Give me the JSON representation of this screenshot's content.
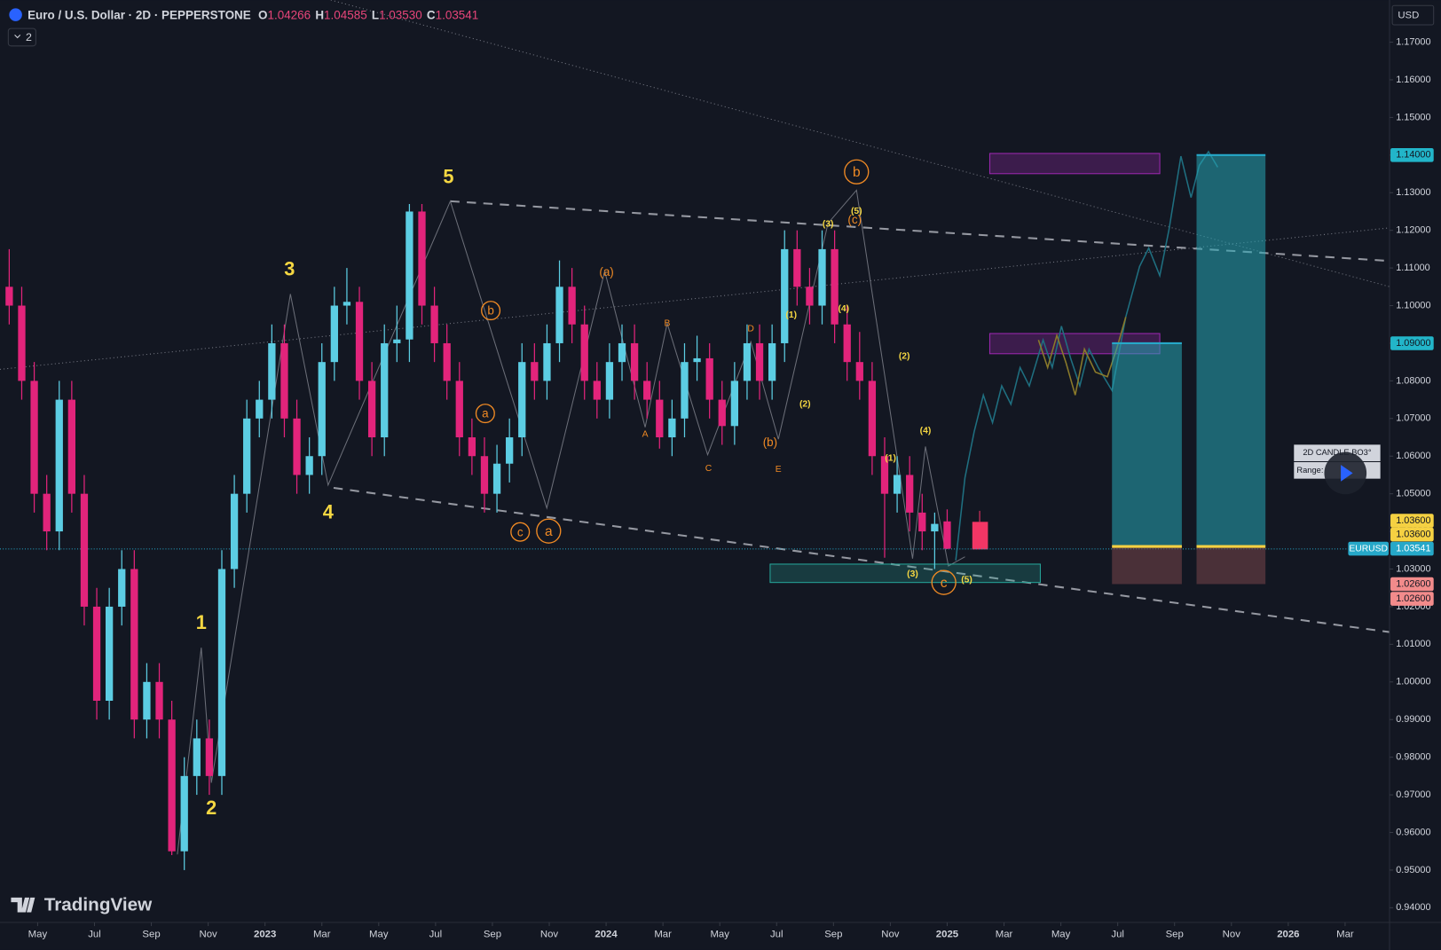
{
  "header": {
    "title": "Euro / U.S. Dollar · 2D · PEPPERSTONE",
    "o_label": "O",
    "open": "1.04266",
    "h_label": "H",
    "high": "1.04585",
    "l_label": "L",
    "low": "1.03530",
    "c_label": "C",
    "close": "1.03541",
    "toggle": "2",
    "currency": "USD",
    "brand": "TradingView"
  },
  "chart_data": {
    "type": "candlestick",
    "symbol": "EURUSD",
    "up_color": "#5ccde3",
    "down_color": "#e2247b",
    "candle_span": [
      "2022-04",
      "2025-01"
    ],
    "candles": [
      [
        1.105,
        1.115,
        1.095,
        1.1
      ],
      [
        1.1,
        1.105,
        1.075,
        1.08
      ],
      [
        1.08,
        1.085,
        1.045,
        1.05
      ],
      [
        1.05,
        1.055,
        1.035,
        1.04
      ],
      [
        1.04,
        1.08,
        1.035,
        1.075
      ],
      [
        1.075,
        1.08,
        1.045,
        1.05
      ],
      [
        1.05,
        1.055,
        1.015,
        1.02
      ],
      [
        1.02,
        1.025,
        0.99,
        0.995
      ],
      [
        0.995,
        1.025,
        0.99,
        1.02
      ],
      [
        1.02,
        1.035,
        1.015,
        1.03
      ],
      [
        1.03,
        1.035,
        0.985,
        0.99
      ],
      [
        0.99,
        1.005,
        0.985,
        1.0
      ],
      [
        1.0,
        1.005,
        0.985,
        0.99
      ],
      [
        0.99,
        0.995,
        0.954,
        0.955
      ],
      [
        0.955,
        0.98,
        0.95,
        0.975
      ],
      [
        0.975,
        0.99,
        0.97,
        0.985
      ],
      [
        0.985,
        0.99,
        0.97,
        0.975
      ],
      [
        0.975,
        1.035,
        0.97,
        1.03
      ],
      [
        1.03,
        1.055,
        1.025,
        1.05
      ],
      [
        1.05,
        1.075,
        1.045,
        1.07
      ],
      [
        1.07,
        1.08,
        1.065,
        1.075
      ],
      [
        1.075,
        1.095,
        1.07,
        1.09
      ],
      [
        1.09,
        1.095,
        1.065,
        1.07
      ],
      [
        1.07,
        1.075,
        1.05,
        1.055
      ],
      [
        1.055,
        1.065,
        1.05,
        1.06
      ],
      [
        1.06,
        1.09,
        1.055,
        1.085
      ],
      [
        1.085,
        1.105,
        1.08,
        1.1
      ],
      [
        1.1,
        1.11,
        1.095,
        1.101
      ],
      [
        1.101,
        1.105,
        1.075,
        1.08
      ],
      [
        1.08,
        1.085,
        1.06,
        1.065
      ],
      [
        1.065,
        1.095,
        1.06,
        1.09
      ],
      [
        1.09,
        1.1,
        1.085,
        1.091
      ],
      [
        1.091,
        1.127,
        1.085,
        1.125
      ],
      [
        1.125,
        1.127,
        1.095,
        1.1
      ],
      [
        1.1,
        1.105,
        1.085,
        1.09
      ],
      [
        1.09,
        1.095,
        1.075,
        1.08
      ],
      [
        1.08,
        1.085,
        1.06,
        1.065
      ],
      [
        1.065,
        1.07,
        1.055,
        1.06
      ],
      [
        1.06,
        1.065,
        1.045,
        1.05
      ],
      [
        1.05,
        1.063,
        1.045,
        1.058
      ],
      [
        1.058,
        1.07,
        1.053,
        1.065
      ],
      [
        1.065,
        1.09,
        1.06,
        1.085
      ],
      [
        1.085,
        1.09,
        1.075,
        1.08
      ],
      [
        1.08,
        1.095,
        1.075,
        1.09
      ],
      [
        1.09,
        1.112,
        1.085,
        1.105
      ],
      [
        1.105,
        1.11,
        1.09,
        1.095
      ],
      [
        1.095,
        1.1,
        1.075,
        1.08
      ],
      [
        1.08,
        1.085,
        1.07,
        1.075
      ],
      [
        1.075,
        1.09,
        1.07,
        1.085
      ],
      [
        1.085,
        1.095,
        1.08,
        1.09
      ],
      [
        1.09,
        1.095,
        1.075,
        1.08
      ],
      [
        1.08,
        1.085,
        1.07,
        1.075
      ],
      [
        1.075,
        1.08,
        1.062,
        1.065
      ],
      [
        1.065,
        1.075,
        1.06,
        1.07
      ],
      [
        1.07,
        1.09,
        1.065,
        1.085
      ],
      [
        1.085,
        1.092,
        1.08,
        1.086
      ],
      [
        1.086,
        1.09,
        1.07,
        1.075
      ],
      [
        1.075,
        1.08,
        1.063,
        1.068
      ],
      [
        1.068,
        1.085,
        1.063,
        1.08
      ],
      [
        1.08,
        1.095,
        1.075,
        1.09
      ],
      [
        1.09,
        1.095,
        1.075,
        1.08
      ],
      [
        1.08,
        1.095,
        1.075,
        1.09
      ],
      [
        1.09,
        1.12,
        1.085,
        1.115
      ],
      [
        1.115,
        1.12,
        1.1,
        1.105
      ],
      [
        1.105,
        1.11,
        1.095,
        1.1
      ],
      [
        1.1,
        1.12,
        1.095,
        1.115
      ],
      [
        1.115,
        1.12,
        1.09,
        1.095
      ],
      [
        1.095,
        1.1,
        1.08,
        1.085
      ],
      [
        1.085,
        1.093,
        1.075,
        1.08
      ],
      [
        1.08,
        1.085,
        1.055,
        1.06
      ],
      [
        1.06,
        1.065,
        1.033,
        1.05
      ],
      [
        1.05,
        1.06,
        1.045,
        1.055
      ],
      [
        1.055,
        1.06,
        1.04,
        1.045
      ],
      [
        1.045,
        1.05,
        1.035,
        1.04
      ],
      [
        1.04,
        1.045,
        1.03,
        1.042
      ],
      [
        1.04266,
        1.04585,
        1.0353,
        1.03541
      ]
    ],
    "ylim": [
      0.9361,
      1.1812
    ],
    "yticks": [
      {
        "value": 1.17,
        "label": "1.17000"
      },
      {
        "value": 1.16,
        "label": "1.16000"
      },
      {
        "value": 1.15,
        "label": "1.15000"
      },
      {
        "value": 1.14,
        "label": "1.14000"
      },
      {
        "value": 1.13,
        "label": "1.13000"
      },
      {
        "value": 1.12,
        "label": "1.12000"
      },
      {
        "value": 1.11,
        "label": "1.11000"
      },
      {
        "value": 1.1,
        "label": "1.10000"
      },
      {
        "value": 1.09,
        "label": "1.09000"
      },
      {
        "value": 1.08,
        "label": "1.08000"
      },
      {
        "value": 1.07,
        "label": "1.07000"
      },
      {
        "value": 1.06,
        "label": "1.06000"
      },
      {
        "value": 1.05,
        "label": "1.05000"
      },
      {
        "value": 1.04,
        "label": "1.04000"
      },
      {
        "value": 1.03,
        "label": "1.03000"
      },
      {
        "value": 1.02,
        "label": "1.02000"
      },
      {
        "value": 1.01,
        "label": "1.01000"
      },
      {
        "value": 1.0,
        "label": "1.00000"
      },
      {
        "value": 0.99,
        "label": "0.99000"
      },
      {
        "value": 0.98,
        "label": "0.98000"
      },
      {
        "value": 0.97,
        "label": "0.97000"
      },
      {
        "value": 0.96,
        "label": "0.96000"
      },
      {
        "value": 0.95,
        "label": "0.95000"
      },
      {
        "value": 0.94,
        "label": "0.94000"
      }
    ],
    "xlim": [
      "2022-03",
      "2026-05"
    ],
    "xticks": [
      {
        "value": "2022-05",
        "label": "May"
      },
      {
        "value": "2022-07",
        "label": "Jul"
      },
      {
        "value": "2022-09",
        "label": "Sep"
      },
      {
        "value": "2022-11",
        "label": "Nov"
      },
      {
        "value": "2023-01",
        "label": "2023"
      },
      {
        "value": "2023-03",
        "label": "Mar"
      },
      {
        "value": "2023-05",
        "label": "May"
      },
      {
        "value": "2023-07",
        "label": "Jul"
      },
      {
        "value": "2023-09",
        "label": "Sep"
      },
      {
        "value": "2023-11",
        "label": "Nov"
      },
      {
        "value": "2024-01",
        "label": "2024"
      },
      {
        "value": "2024-03",
        "label": "Mar"
      },
      {
        "value": "2024-05",
        "label": "May"
      },
      {
        "value": "2024-07",
        "label": "Jul"
      },
      {
        "value": "2024-09",
        "label": "Sep"
      },
      {
        "value": "2024-11",
        "label": "Nov"
      },
      {
        "value": "2025-01",
        "label": "2025"
      },
      {
        "value": "2025-03",
        "label": "Mar"
      },
      {
        "value": "2025-05",
        "label": "May"
      },
      {
        "value": "2025-07",
        "label": "Jul"
      },
      {
        "value": "2025-09",
        "label": "Sep"
      },
      {
        "value": "2025-11",
        "label": "Nov"
      },
      {
        "value": "2026-01",
        "label": "2026"
      },
      {
        "value": "2026-03",
        "label": "Mar"
      }
    ],
    "price_tags": [
      {
        "value": 1.14,
        "label": "1.14000"
      },
      {
        "value": 1.09,
        "label": "1.09000"
      },
      {
        "value": 1.036,
        "label": "1.03600"
      },
      {
        "value": 1.036,
        "label": "1.03600"
      },
      {
        "value": 1.03541,
        "label": "1.03541"
      },
      {
        "value": 1.026,
        "label": "1.02600"
      },
      {
        "value": 1.026,
        "label": "1.02600"
      }
    ],
    "positions": [
      {
        "entry": 1.036,
        "target": 1.09,
        "stop": 1.026
      },
      {
        "entry": 1.036,
        "target": 1.14,
        "stop": 1.026
      }
    ],
    "wave_labels": [
      "5",
      "3",
      "4",
      "1",
      "2",
      "b",
      "b",
      "a",
      "c",
      "a",
      "c",
      "(a)",
      "(c)",
      "(b)",
      "A",
      "B",
      "C",
      "D",
      "E",
      "(5)",
      "(3)",
      "(4)",
      "(1)",
      "(2)",
      "(2)",
      "(4)",
      "(1)",
      "(3)",
      "(5)"
    ],
    "info_box": {
      "title": "2D CANDLE BO3°",
      "range": "Range:"
    }
  }
}
